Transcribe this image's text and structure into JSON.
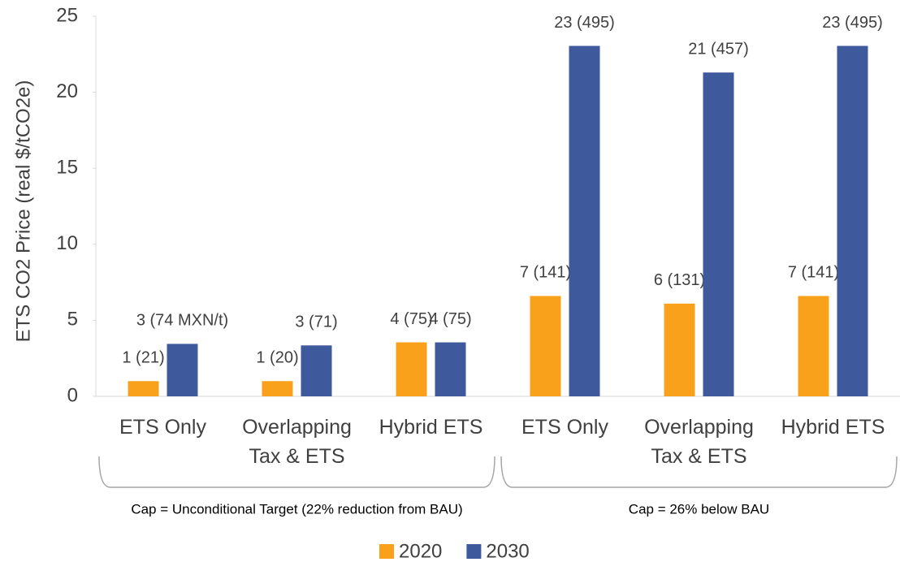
{
  "chart_data": {
    "type": "bar",
    "ylabel": "ETS CO2 Price (real $/tCO2e)",
    "categories": [
      "ETS Only",
      "Overlapping\nTax & ETS",
      "Hybrid ETS",
      "ETS Only",
      "Overlapping\nTax & ETS",
      "Hybrid ETS"
    ],
    "groups": [
      "Cap = Unconditional Target (22% reduction from BAU)",
      "Cap = 26% below BAU"
    ],
    "series": [
      {
        "name": "2020",
        "color": "#F9A11B",
        "values": [
          1.0,
          1.0,
          3.55,
          6.6,
          6.1,
          6.6
        ],
        "value_labels": [
          "1 (21)",
          "1 (20)",
          "4  (75)",
          "7 (141)",
          "6  (131)",
          "7 (141)"
        ]
      },
      {
        "name": "2030",
        "color": "#3F5A9C",
        "values": [
          3.45,
          3.35,
          3.55,
          23.05,
          21.3,
          23.05
        ],
        "value_labels": [
          "3 (74 MXN/t)",
          "3  (71)",
          "4 (75)",
          "23 (495)",
          "21 (457)",
          "23 (495)"
        ]
      }
    ],
    "ylim": [
      0,
      25
    ],
    "yticks": [
      0,
      5,
      10,
      15,
      20,
      25
    ],
    "legend": "bottom"
  }
}
